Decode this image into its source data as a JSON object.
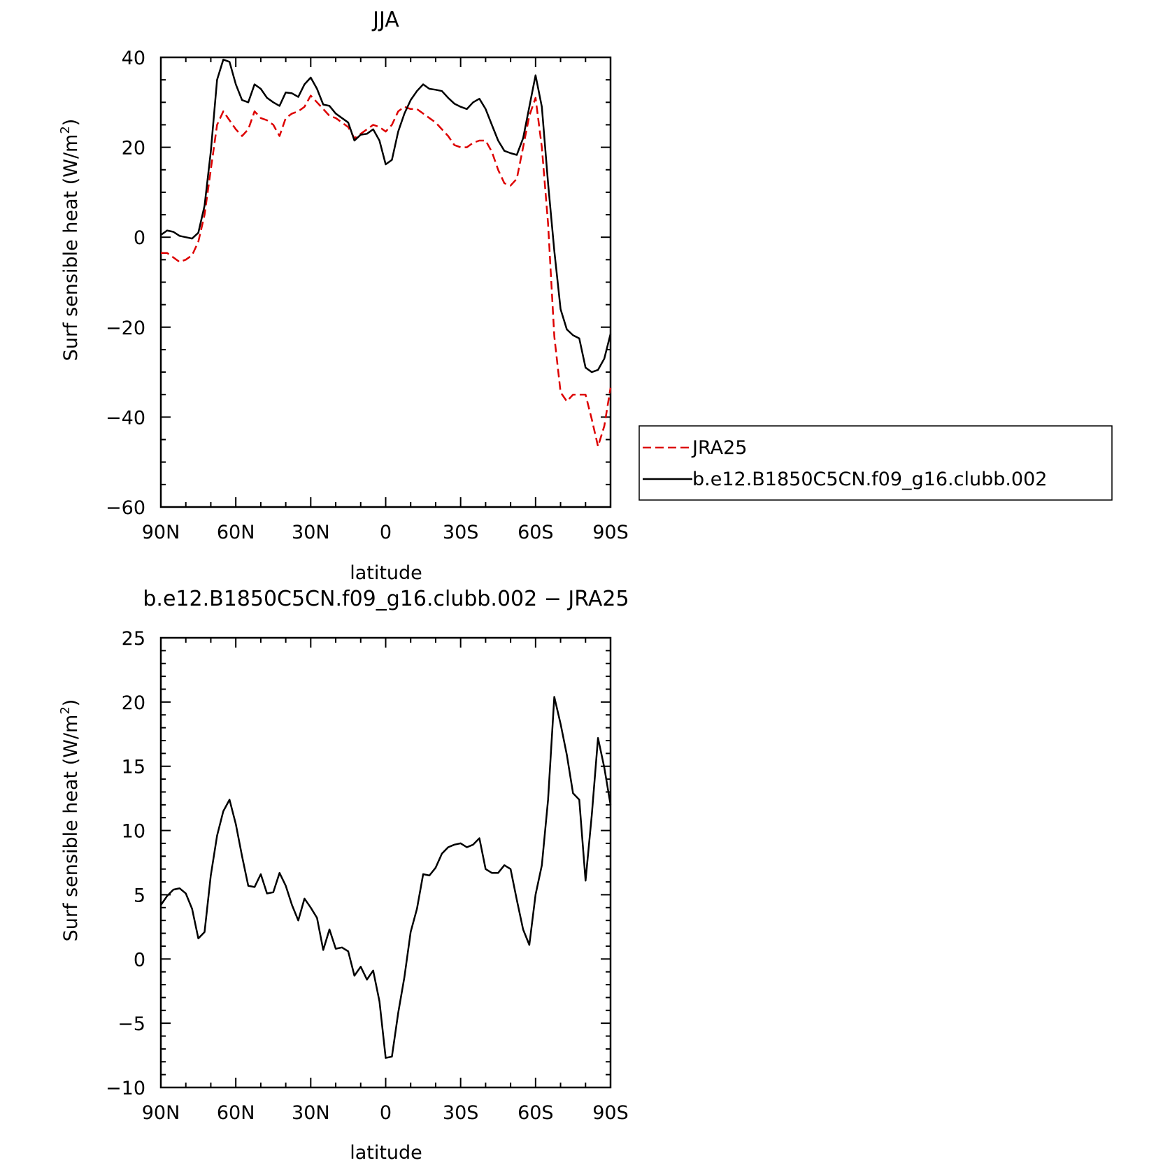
{
  "chart_data": [
    {
      "type": "line",
      "title": "JJA",
      "xlabel": "latitude",
      "ylabel": "Surf sensible heat (W/m",
      "ylabel_sup": "2",
      "ylabel_close": ")",
      "xlim": [
        90,
        -90
      ],
      "ylim": [
        -60,
        40
      ],
      "xticks": [
        90,
        60,
        30,
        0,
        -30,
        -60,
        -90
      ],
      "xtick_labels": [
        "90N",
        "60N",
        "30N",
        "0",
        "30S",
        "60S",
        "90S"
      ],
      "yticks": [
        40,
        20,
        0,
        -20,
        -40,
        -60
      ],
      "ytick_labels": [
        "40",
        "20",
        "0",
        "−20",
        "−40",
        "−60"
      ],
      "legend_position": "right",
      "series": [
        {
          "name": "JRA25",
          "color": "#dd0000",
          "style": "dashed",
          "x": [
            90,
            87.5,
            85,
            82.5,
            80,
            77.5,
            75,
            72.5,
            70,
            67.5,
            65,
            62.5,
            60,
            57.5,
            55,
            52.5,
            50,
            47.5,
            45,
            42.5,
            40,
            37.5,
            35,
            32.5,
            30,
            27.5,
            25,
            22.5,
            20,
            17.5,
            15,
            12.5,
            10,
            7.5,
            5,
            2.5,
            0,
            -2.5,
            -5,
            -7.5,
            -10,
            -12.5,
            -15,
            -17.5,
            -20,
            -22.5,
            -25,
            -27.5,
            -30,
            -32.5,
            -35,
            -37.5,
            -40,
            -42.5,
            -45,
            -47.5,
            -50,
            -52.5,
            -55,
            -57.5,
            -60,
            -62.5,
            -65,
            -67.5,
            -70,
            -72.5,
            -75,
            -77.5,
            -80,
            -82.5,
            -85,
            -87.5,
            -90
          ],
          "y": [
            -3.5,
            -3.5,
            -4.5,
            -5.5,
            -5,
            -4,
            -1,
            5,
            15,
            25,
            28,
            26,
            24,
            22.5,
            24,
            28,
            26.5,
            26,
            25,
            22.5,
            26.5,
            27.5,
            28,
            29,
            31.5,
            30,
            28.5,
            27,
            26.5,
            25.5,
            24.5,
            22,
            23,
            24,
            25,
            24.5,
            23.5,
            25,
            28,
            29,
            28.5,
            28.5,
            27.5,
            26.5,
            25.5,
            24,
            22.5,
            20.5,
            20,
            20,
            21,
            21.5,
            21.5,
            19,
            15,
            12,
            11.5,
            13,
            20,
            27,
            31,
            20,
            3,
            -22,
            -34.5,
            -36.5,
            -35,
            -35,
            -35,
            -40.5,
            -46.5,
            -42,
            -33.5
          ]
        },
        {
          "name": "b.e12.B1850C5CN.f09_g16.clubb.002",
          "color": "#000000",
          "style": "solid",
          "x": [
            90,
            87.5,
            85,
            82.5,
            80,
            77.5,
            75,
            72.5,
            70,
            67.5,
            65,
            62.5,
            60,
            57.5,
            55,
            52.5,
            50,
            47.5,
            45,
            42.5,
            40,
            37.5,
            35,
            32.5,
            30,
            27.5,
            25,
            22.5,
            20,
            17.5,
            15,
            12.5,
            10,
            7.5,
            5,
            2.5,
            0,
            -2.5,
            -5,
            -7.5,
            -10,
            -12.5,
            -15,
            -17.5,
            -20,
            -22.5,
            -25,
            -27.5,
            -30,
            -32.5,
            -35,
            -37.5,
            -40,
            -42.5,
            -45,
            -47.5,
            -50,
            -52.5,
            -55,
            -57.5,
            -60,
            -62.5,
            -65,
            -67.5,
            -70,
            -72.5,
            -75,
            -77.5,
            -80,
            -82.5,
            -85,
            -87.5,
            -90
          ],
          "y": [
            0.5,
            1.5,
            1.2,
            0.3,
            0,
            -0.3,
            1,
            7,
            19,
            35,
            39.5,
            39,
            34,
            30.5,
            30,
            34,
            33,
            31,
            30,
            29.2,
            32.2,
            32,
            31.2,
            34,
            35.5,
            33,
            29.5,
            29.2,
            27.5,
            26.5,
            25.5,
            21.5,
            22.8,
            23,
            24,
            21.5,
            16.2,
            17.2,
            23.5,
            27.5,
            30.5,
            32.5,
            34,
            33,
            32.8,
            32.5,
            31,
            29.7,
            29,
            28.5,
            30,
            30.8,
            28.5,
            25,
            21.5,
            19.2,
            18.7,
            18.3,
            22,
            29,
            36,
            29,
            12,
            -3,
            -16,
            -20.5,
            -21.8,
            -22.5,
            -29,
            -30,
            -29.5,
            -27,
            -21.5
          ]
        }
      ]
    },
    {
      "type": "line",
      "title": "b.e12.B1850C5CN.f09_g16.clubb.002 − JRA25",
      "xlabel": "latitude",
      "ylabel": "Surf sensible heat (W/m",
      "ylabel_sup": "2",
      "ylabel_close": ")",
      "xlim": [
        90,
        -90
      ],
      "ylim": [
        -10,
        25
      ],
      "xticks": [
        90,
        60,
        30,
        0,
        -30,
        -60,
        -90
      ],
      "xtick_labels": [
        "90N",
        "60N",
        "30N",
        "0",
        "30S",
        "60S",
        "90S"
      ],
      "yticks": [
        25,
        20,
        15,
        10,
        5,
        0,
        -5,
        -10
      ],
      "ytick_labels": [
        "25",
        "20",
        "15",
        "10",
        "5",
        "0",
        "−5",
        "−10"
      ],
      "series": [
        {
          "color": "#000000",
          "style": "solid",
          "x": [
            90,
            87.5,
            85,
            82.5,
            80,
            77.5,
            75,
            72.5,
            70,
            67.5,
            65,
            62.5,
            60,
            57.5,
            55,
            52.5,
            50,
            47.5,
            45,
            42.5,
            40,
            37.5,
            35,
            32.5,
            30,
            27.5,
            25,
            22.5,
            20,
            17.5,
            15,
            12.5,
            10,
            7.5,
            5,
            2.5,
            0,
            -2.5,
            -5,
            -7.5,
            -10,
            -12.5,
            -15,
            -17.5,
            -20,
            -22.5,
            -25,
            -27.5,
            -30,
            -32.5,
            -35,
            -37.5,
            -40,
            -42.5,
            -45,
            -47.5,
            -50,
            -52.5,
            -55,
            -57.5,
            -60,
            -62.5,
            -65,
            -67.5,
            -70,
            -72.5,
            -75,
            -77.5,
            -80,
            -82.5,
            -85,
            -87.5,
            -90
          ],
          "y": [
            4.2,
            4.9,
            5.4,
            5.5,
            5.1,
            3.9,
            1.6,
            2.1,
            6.5,
            9.6,
            11.5,
            12.4,
            10.5,
            8,
            5.7,
            5.6,
            6.6,
            5.1,
            5.2,
            6.7,
            5.7,
            4.2,
            3,
            4.7,
            4,
            3.2,
            0.7,
            2.3,
            0.8,
            0.9,
            0.6,
            -1.3,
            -0.6,
            -1.6,
            -0.9,
            -3.3,
            -7.7,
            -7.6,
            -4.2,
            -1.4,
            2.1,
            3.9,
            6.6,
            6.5,
            7.1,
            8.2,
            8.7,
            8.9,
            9,
            8.7,
            8.9,
            9.4,
            7,
            6.7,
            6.7,
            7.3,
            7,
            4.6,
            2.3,
            1.1,
            5,
            7.3,
            12.4,
            20.4,
            18.3,
            15.9,
            12.9,
            12.4,
            6.1,
            11.2,
            17.2,
            14.9,
            12
          ]
        }
      ]
    }
  ]
}
